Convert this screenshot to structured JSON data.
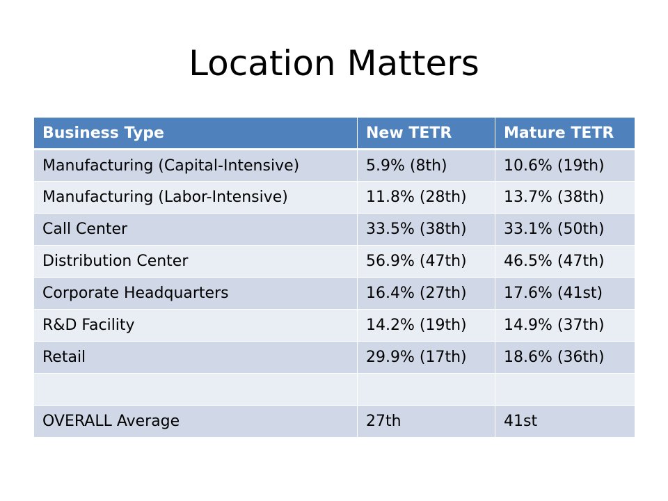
{
  "slide": {
    "title": "Location Matters"
  },
  "table": {
    "headers": [
      "Business Type",
      "New TETR",
      "Mature TETR"
    ],
    "rows": [
      [
        "Manufacturing (Capital-Intensive)",
        "5.9% (8th)",
        "10.6% (19th)"
      ],
      [
        "Manufacturing (Labor-Intensive)",
        "11.8% (28th)",
        "13.7% (38th)"
      ],
      [
        "Call Center",
        "33.5% (38th)",
        "33.1% (50th)"
      ],
      [
        "Distribution Center",
        "56.9% (47th)",
        "46.5% (47th)"
      ],
      [
        "Corporate Headquarters",
        "16.4% (27th)",
        "17.6% (41st)"
      ],
      [
        "R&D Facility",
        "14.2% (19th)",
        "14.9% (37th)"
      ],
      [
        "Retail",
        "29.9% (17th)",
        "18.6% (36th)"
      ],
      [
        "",
        "",
        ""
      ],
      [
        "OVERALL Average",
        "27th",
        "41st"
      ]
    ]
  },
  "colors": {
    "header_bg": "#4f81bd",
    "header_text": "#ffffff",
    "row_dark": "#d0d8e8",
    "row_light": "#e9edf4"
  }
}
